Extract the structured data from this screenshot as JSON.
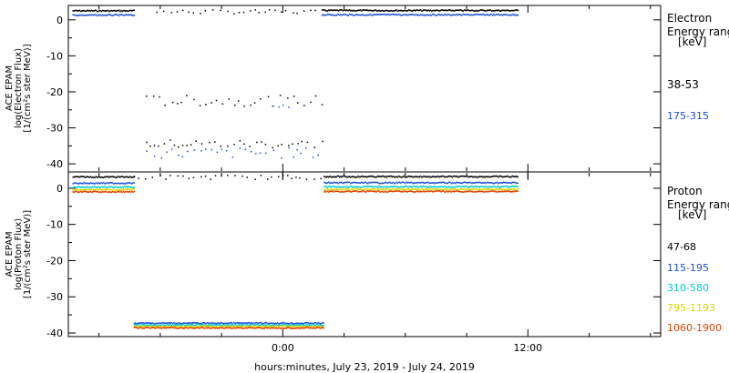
{
  "chart_data": [
    {
      "type": "scatter",
      "ylabel_lines": [
        "ACE EPAM",
        "log(Electron Flux)",
        "[1/(cm²s ster MeV)]"
      ],
      "ylim": [
        -42,
        4
      ],
      "yticks": [
        0,
        -10,
        -20,
        -30,
        -40
      ],
      "legend_title": [
        "Electron",
        "Energy range",
        "[keV]"
      ],
      "series": [
        {
          "name": "38-53",
          "color": "#000000",
          "segments": [
            {
              "x": [
                -10.3,
                -7.3
              ],
              "y": 2.5
            },
            {
              "x": [
                -6.2,
                1.7
              ],
              "y": 2.2,
              "sparse": true
            },
            {
              "x": [
                1.9,
                11.5
              ],
              "y": 2.6
            },
            {
              "x": [
                -6.7,
                2.0
              ],
              "y": -22.5,
              "sparse": true,
              "spread": 1.5
            },
            {
              "x": [
                -6.7,
                2.0
              ],
              "y": -34.5,
              "sparse": true,
              "spread": 1.2
            }
          ]
        },
        {
          "name": "175-315",
          "color": "#1e4fd8",
          "segments": [
            {
              "x": [
                -10.3,
                -7.3
              ],
              "y": 1.3
            },
            {
              "x": [
                1.9,
                11.5
              ],
              "y": 1.4
            },
            {
              "x": [
                -6.7,
                2.0
              ],
              "y": -37.0,
              "sparse": true,
              "spread": 1.5
            },
            {
              "x": [
                -0.5,
                0.3
              ],
              "y": -24.0,
              "sparse": true,
              "spread": 0.5
            }
          ]
        }
      ]
    },
    {
      "type": "scatter",
      "ylabel_lines": [
        "ACE EPAM",
        "log(Proton Flux)",
        "[1/(cm²s ster MeV)]"
      ],
      "ylim": [
        -41,
        4.5
      ],
      "yticks": [
        0,
        -10,
        -20,
        -30,
        -40
      ],
      "legend_title": [
        "Proton",
        "Energy range",
        "[keV]"
      ],
      "series": [
        {
          "name": "47-68",
          "color": "#000000",
          "segments": [
            {
              "x": [
                -10.3,
                -7.3
              ],
              "y": 3.1
            },
            {
              "x": [
                -7.3,
                2.0
              ],
              "y": 3.0,
              "sparse": true
            },
            {
              "x": [
                2.0,
                11.5
              ],
              "y": 3.2
            }
          ]
        },
        {
          "name": "115-195",
          "color": "#1e4fd8",
          "segments": [
            {
              "x": [
                -10.3,
                -7.3
              ],
              "y": 1.4
            },
            {
              "x": [
                2.0,
                11.5
              ],
              "y": 1.5
            },
            {
              "x": [
                -7.3,
                2.0
              ],
              "y": -37.3
            }
          ]
        },
        {
          "name": "310-580",
          "color": "#00c8d8",
          "segments": [
            {
              "x": [
                -10.3,
                -7.3
              ],
              "y": 0.3
            },
            {
              "x": [
                2.0,
                11.5
              ],
              "y": 0.4
            },
            {
              "x": [
                -7.3,
                2.0
              ],
              "y": -37.8
            }
          ]
        },
        {
          "name": "795-1193",
          "color": "#d8d800",
          "segments": [
            {
              "x": [
                -10.3,
                -7.3
              ],
              "y": -0.4
            },
            {
              "x": [
                2.0,
                11.5
              ],
              "y": -0.3
            },
            {
              "x": [
                -7.3,
                2.0
              ],
              "y": -38.2
            }
          ]
        },
        {
          "name": "1060-1900",
          "color": "#e04000",
          "segments": [
            {
              "x": [
                -10.3,
                -7.3
              ],
              "y": -1.0
            },
            {
              "x": [
                2.0,
                11.5
              ],
              "y": -0.9
            },
            {
              "x": [
                -7.3,
                2.0
              ],
              "y": -38.6
            }
          ]
        }
      ]
    }
  ],
  "x_axis": {
    "range_hours": [
      -10.5,
      18.5
    ],
    "tick_labels": [
      {
        "hour": 0,
        "label": "0:00"
      },
      {
        "hour": 12,
        "label": "12:00"
      }
    ],
    "minor_ticks_hours": [
      -9,
      -6,
      -3,
      3,
      6,
      9,
      15,
      18
    ],
    "xlabel": "hours:minutes, July 23, 2019 - July 24, 2019"
  }
}
